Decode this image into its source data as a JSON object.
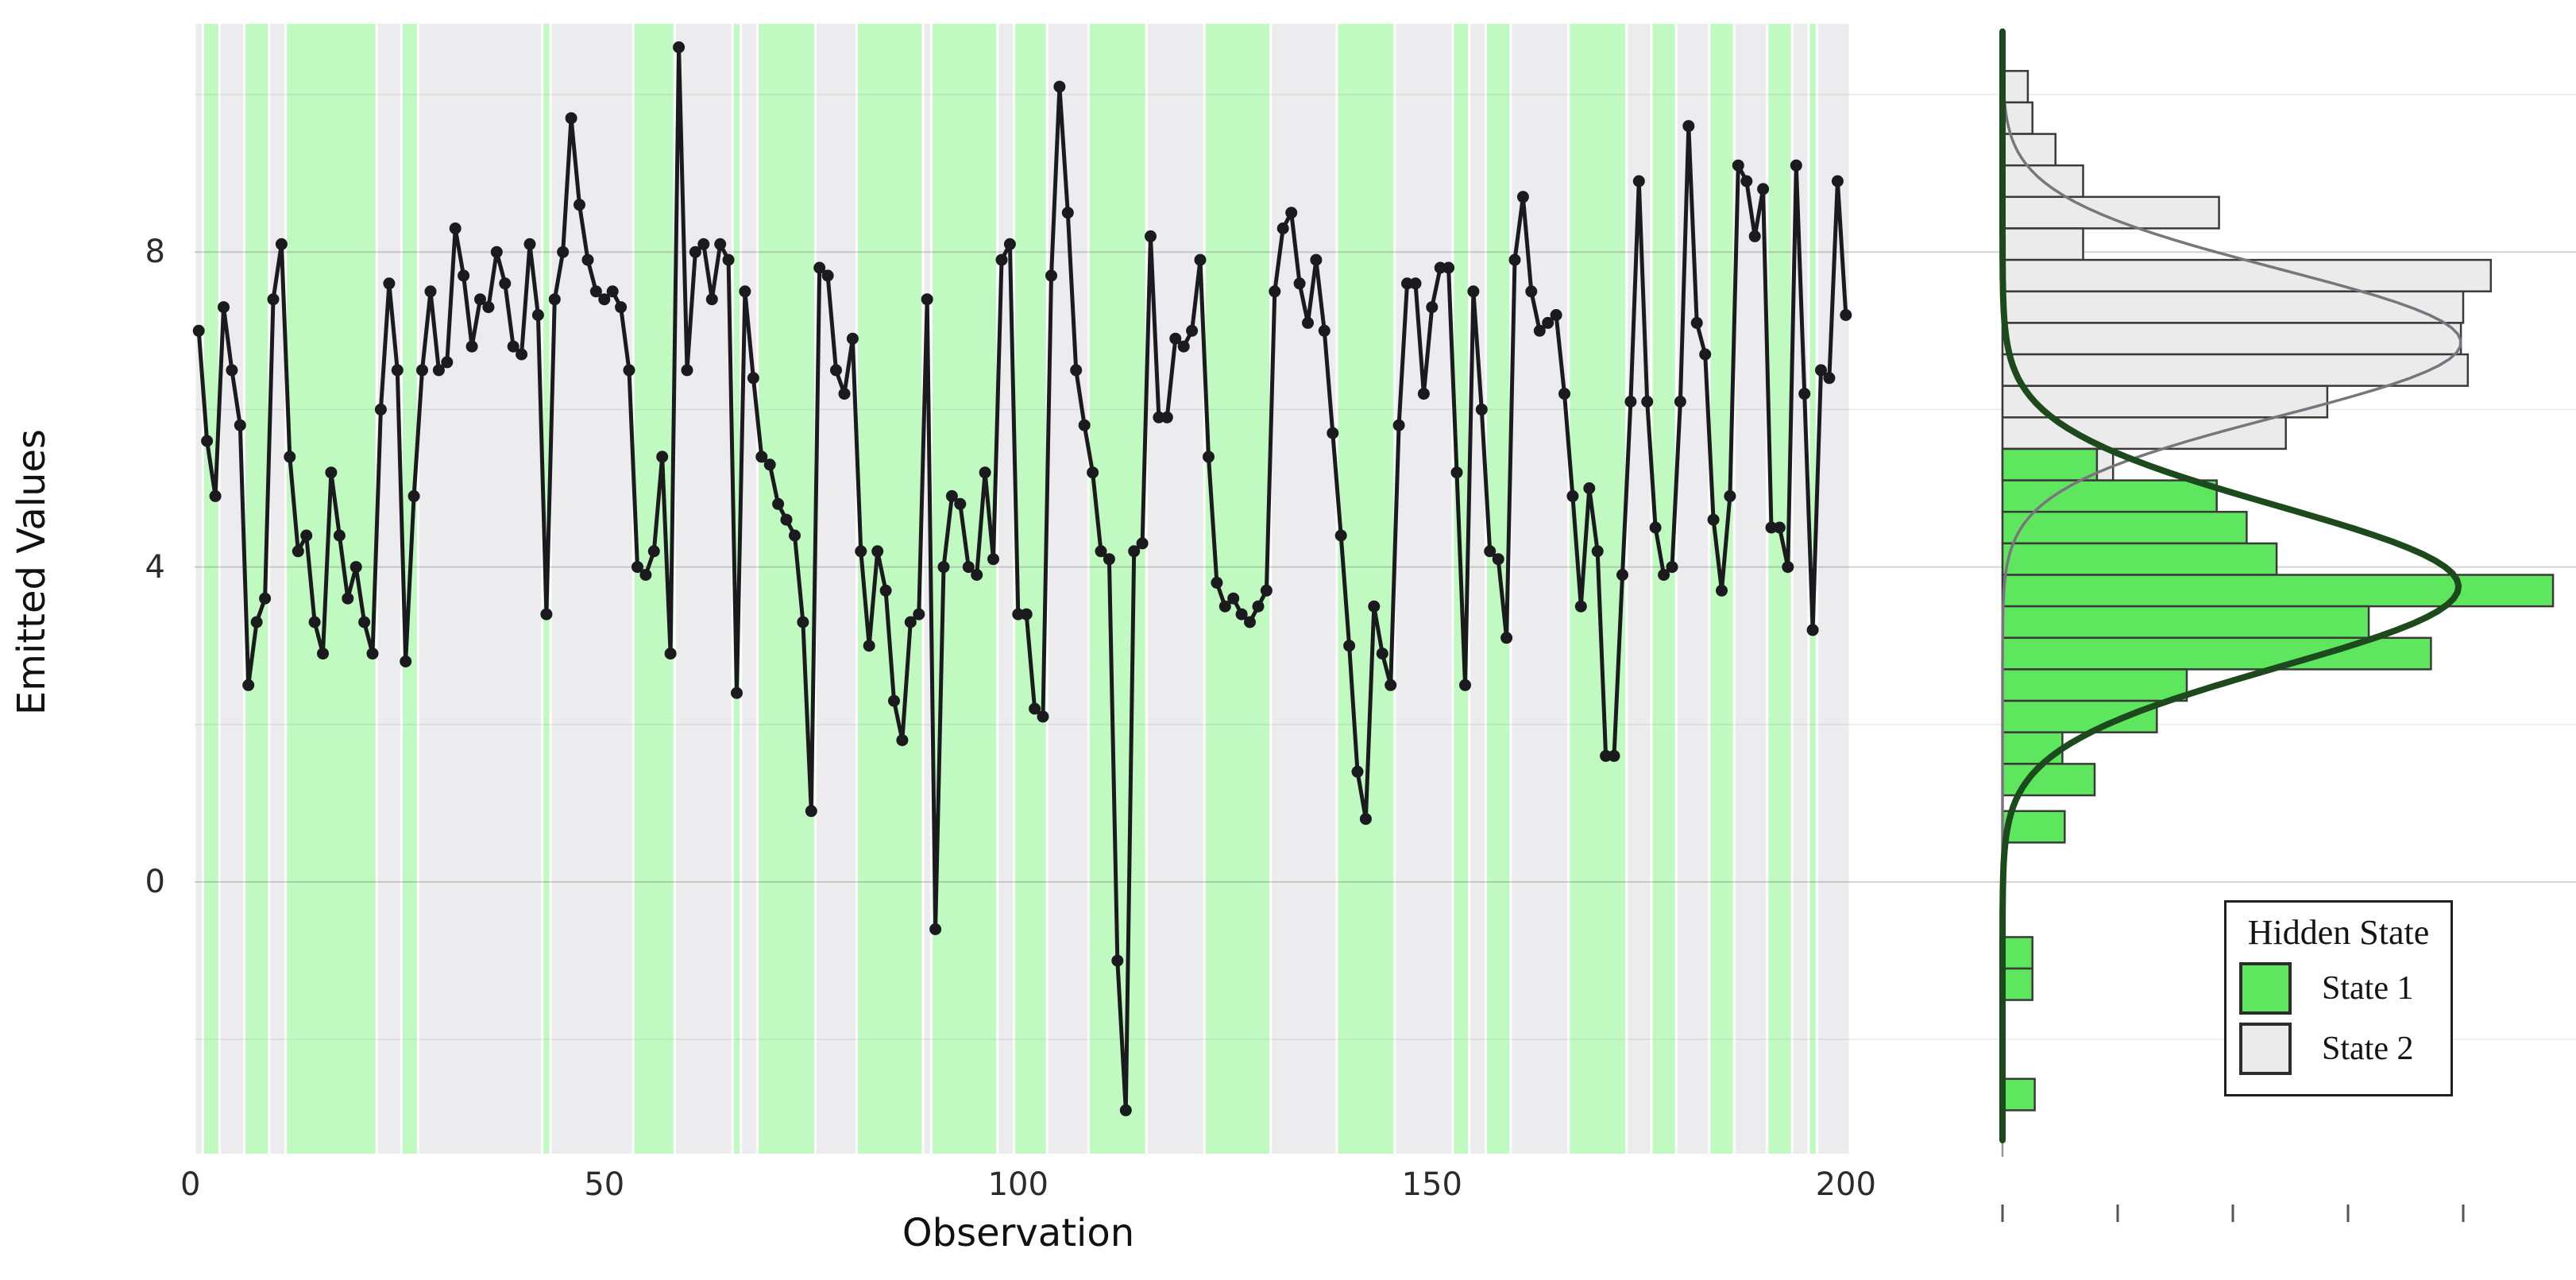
{
  "figure": {
    "left_panel": {
      "xlabel": "Observation",
      "ylabel": "Emitted Values",
      "y_ticks": [
        {
          "label": "8",
          "value": 8
        },
        {
          "label": "4",
          "value": 4
        },
        {
          "label": "0",
          "value": 0
        }
      ],
      "x_ticks": [
        {
          "label": "0",
          "value": 0
        },
        {
          "label": "50",
          "value": 50
        },
        {
          "label": "100",
          "value": 100
        },
        {
          "label": "150",
          "value": 150
        },
        {
          "label": "200",
          "value": 200
        }
      ]
    },
    "histogram_panel": {
      "x_tick_count": 5,
      "x_ticks_labeled": false
    }
  },
  "chart_data": [
    {
      "type": "line",
      "title": "Emitted values per observation, shaded by decoded hidden state",
      "xlabel": "Observation",
      "ylabel": "Emitted Values",
      "xlim": [
        0,
        201
      ],
      "ylim": [
        -3.4,
        11.2
      ],
      "x_ticks": [
        0,
        50,
        100,
        150,
        200
      ],
      "y_ticks_major": [
        8,
        4,
        0
      ],
      "y_ticks_minor": [
        10,
        6,
        2,
        -2
      ],
      "grid": true,
      "line_color": "#1b1a1f",
      "marker": "circle",
      "state_colors": {
        "state1": "#c1fac1",
        "state2": "#ececee"
      },
      "x_start": 1,
      "values": [
        7.0,
        5.6,
        4.9,
        7.3,
        6.5,
        5.8,
        2.5,
        3.3,
        3.6,
        7.4,
        8.1,
        5.4,
        4.2,
        4.4,
        3.3,
        2.9,
        5.2,
        4.4,
        3.6,
        4.0,
        3.3,
        2.9,
        6.0,
        7.6,
        6.5,
        2.8,
        4.9,
        6.5,
        7.5,
        6.5,
        6.6,
        8.3,
        7.7,
        6.8,
        7.4,
        7.3,
        8.0,
        7.6,
        6.8,
        6.7,
        8.1,
        7.2,
        3.4,
        7.4,
        8.0,
        9.7,
        8.6,
        7.9,
        7.5,
        7.4,
        7.5,
        7.3,
        6.5,
        4.0,
        3.9,
        4.2,
        5.4,
        2.9,
        10.6,
        6.5,
        8.0,
        8.1,
        7.4,
        8.1,
        7.9,
        2.4,
        7.5,
        6.4,
        5.4,
        5.3,
        4.8,
        4.6,
        4.4,
        3.3,
        0.9,
        7.8,
        7.7,
        6.5,
        6.2,
        6.9,
        4.2,
        3.0,
        4.2,
        3.7,
        2.3,
        1.8,
        3.3,
        3.4,
        7.4,
        -0.6,
        4.0,
        4.9,
        4.8,
        4.0,
        3.9,
        5.2,
        4.1,
        7.9,
        8.1,
        3.4,
        3.4,
        2.2,
        2.1,
        7.7,
        10.1,
        8.5,
        6.5,
        5.8,
        5.2,
        4.2,
        4.1,
        -1.0,
        -2.9,
        4.2,
        4.3,
        8.2,
        5.9,
        5.9,
        6.9,
        6.8,
        7.0,
        7.9,
        5.4,
        3.8,
        3.5,
        3.6,
        3.4,
        3.3,
        3.5,
        3.7,
        7.5,
        8.3,
        8.5,
        7.6,
        7.1,
        7.9,
        7.0,
        5.7,
        4.4,
        3.0,
        1.4,
        0.8,
        3.5,
        2.9,
        2.5,
        5.8,
        7.6,
        7.6,
        6.2,
        7.3,
        7.8,
        7.8,
        5.2,
        2.5,
        7.5,
        6.0,
        4.2,
        4.1,
        3.1,
        7.9,
        8.7,
        7.5,
        7.0,
        7.1,
        7.2,
        6.2,
        4.9,
        3.5,
        5.0,
        4.2,
        1.6,
        1.6,
        3.9,
        6.1,
        8.9,
        6.1,
        4.5,
        3.9,
        4.0,
        6.1,
        9.6,
        7.1,
        6.7,
        4.6,
        3.7,
        4.9,
        9.1,
        8.9,
        8.2,
        8.8,
        4.5,
        4.5,
        4.0,
        9.1,
        6.2,
        3.2,
        6.5,
        6.4,
        8.9,
        7.2
      ],
      "states": [
        2,
        1,
        1,
        2,
        2,
        2,
        1,
        1,
        1,
        2,
        2,
        1,
        1,
        1,
        1,
        1,
        1,
        1,
        1,
        1,
        1,
        1,
        2,
        2,
        2,
        1,
        1,
        2,
        2,
        2,
        2,
        2,
        2,
        2,
        2,
        2,
        2,
        2,
        2,
        2,
        2,
        2,
        1,
        2,
        2,
        2,
        2,
        2,
        2,
        2,
        2,
        2,
        2,
        1,
        1,
        1,
        1,
        1,
        2,
        2,
        2,
        2,
        2,
        2,
        2,
        1,
        2,
        2,
        1,
        1,
        1,
        1,
        1,
        1,
        1,
        2,
        2,
        2,
        2,
        2,
        1,
        1,
        1,
        1,
        1,
        1,
        1,
        1,
        2,
        1,
        1,
        1,
        1,
        1,
        1,
        1,
        1,
        2,
        2,
        1,
        1,
        1,
        1,
        2,
        2,
        2,
        2,
        2,
        1,
        1,
        1,
        1,
        1,
        1,
        1,
        2,
        2,
        2,
        2,
        2,
        2,
        2,
        1,
        1,
        1,
        1,
        1,
        1,
        1,
        1,
        2,
        2,
        2,
        2,
        2,
        2,
        2,
        2,
        1,
        1,
        1,
        1,
        1,
        1,
        1,
        2,
        2,
        2,
        2,
        2,
        2,
        2,
        1,
        1,
        2,
        2,
        1,
        1,
        1,
        2,
        2,
        2,
        2,
        2,
        2,
        2,
        1,
        1,
        1,
        1,
        1,
        1,
        1,
        2,
        2,
        2,
        1,
        1,
        1,
        2,
        2,
        2,
        2,
        1,
        1,
        1,
        2,
        2,
        2,
        2,
        1,
        1,
        1,
        2,
        2,
        1,
        2,
        2,
        2,
        2
      ]
    },
    {
      "type": "bar",
      "subtype": "horizontal-histogram",
      "title": "Distribution of emitted values by hidden state with fitted densities",
      "bin_width": 0.4,
      "count_per_tick": 5,
      "bars": [
        {
          "v": 10.1,
          "state": 2,
          "count": 1.1
        },
        {
          "v": 9.7,
          "state": 2,
          "count": 1.3
        },
        {
          "v": 9.3,
          "state": 2,
          "count": 2.3
        },
        {
          "v": 8.9,
          "state": 2,
          "count": 3.5
        },
        {
          "v": 8.5,
          "state": 2,
          "count": 9.4
        },
        {
          "v": 8.1,
          "state": 2,
          "count": 3.5
        },
        {
          "v": 7.7,
          "state": 2,
          "count": 21.2
        },
        {
          "v": 7.3,
          "state": 2,
          "count": 20.0
        },
        {
          "v": 6.9,
          "state": 2,
          "count": 19.9
        },
        {
          "v": 6.5,
          "state": 2,
          "count": 20.2
        },
        {
          "v": 6.1,
          "state": 2,
          "count": 14.1
        },
        {
          "v": 5.7,
          "state": 2,
          "count": 12.3
        },
        {
          "v": 5.3,
          "state": 2,
          "count": 4.8
        },
        {
          "v": 5.3,
          "state": 1,
          "count": 4.1
        },
        {
          "v": 4.9,
          "state": 1,
          "count": 9.3
        },
        {
          "v": 4.5,
          "state": 1,
          "count": 10.6
        },
        {
          "v": 4.1,
          "state": 1,
          "count": 11.9
        },
        {
          "v": 3.7,
          "state": 1,
          "count": 23.9
        },
        {
          "v": 3.3,
          "state": 1,
          "count": 15.9
        },
        {
          "v": 2.9,
          "state": 1,
          "count": 18.6
        },
        {
          "v": 2.5,
          "state": 1,
          "count": 8.0
        },
        {
          "v": 2.1,
          "state": 1,
          "count": 6.7
        },
        {
          "v": 1.7,
          "state": 1,
          "count": 2.6
        },
        {
          "v": 1.3,
          "state": 1,
          "count": 4.0
        },
        {
          "v": 0.7,
          "state": 1,
          "count": 2.7
        },
        {
          "v": -0.9,
          "state": 1,
          "count": 1.3
        },
        {
          "v": -1.3,
          "state": 1,
          "count": 1.3
        },
        {
          "v": -2.7,
          "state": 1,
          "count": 1.4
        }
      ],
      "bar_colors": {
        "state1": "#5fe65f",
        "state2": "#ebebeb"
      },
      "bar_border": "#3a3a3a",
      "curves": [
        {
          "name": "state1-density",
          "mu": 3.75,
          "sigma": 1.02,
          "peak": 19.8,
          "color": "#1d4a1d",
          "width": 8
        },
        {
          "name": "state2-density",
          "mu": 6.85,
          "sigma": 0.93,
          "peak": 19.9,
          "color": "#7b737e",
          "width": 3.5
        }
      ],
      "legend": {
        "title": "Hidden State",
        "entries": [
          {
            "label": "State 1",
            "color": "#5fe65f"
          },
          {
            "label": "State 2",
            "color": "#ebebeb"
          }
        ],
        "position": "bottom-right"
      }
    }
  ]
}
